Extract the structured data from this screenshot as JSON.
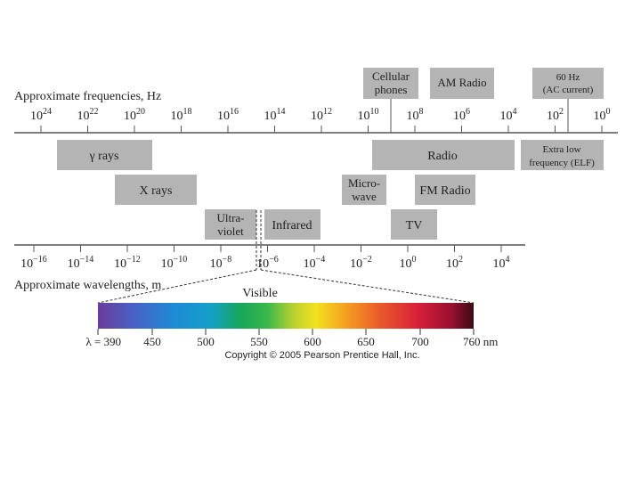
{
  "freq_axis": {
    "title": "Approximate frequencies, Hz",
    "ticks": [
      {
        "base": "10",
        "exp": "24"
      },
      {
        "base": "10",
        "exp": "22"
      },
      {
        "base": "10",
        "exp": "20"
      },
      {
        "base": "10",
        "exp": "18"
      },
      {
        "base": "10",
        "exp": "16"
      },
      {
        "base": "10",
        "exp": "14"
      },
      {
        "base": "10",
        "exp": "12"
      },
      {
        "base": "10",
        "exp": "10"
      },
      {
        "base": "10",
        "exp": "8"
      },
      {
        "base": "10",
        "exp": "6"
      },
      {
        "base": "10",
        "exp": "4"
      },
      {
        "base": "10",
        "exp": "2"
      },
      {
        "base": "10",
        "exp": "0"
      }
    ]
  },
  "wave_axis": {
    "title": "Approximate wavelengths, m",
    "ticks": [
      {
        "base": "10",
        "exp": "−16"
      },
      {
        "base": "10",
        "exp": "−14"
      },
      {
        "base": "10",
        "exp": "−12"
      },
      {
        "base": "10",
        "exp": "−10"
      },
      {
        "base": "10",
        "exp": "−8"
      },
      {
        "base": "10",
        "exp": "−6"
      },
      {
        "base": "10",
        "exp": "−4"
      },
      {
        "base": "10",
        "exp": "−2"
      },
      {
        "base": "10",
        "exp": "0"
      },
      {
        "base": "10",
        "exp": "2"
      },
      {
        "base": "10",
        "exp": "4"
      }
    ]
  },
  "top_boxes": {
    "cellular": [
      "Cellular",
      "phones"
    ],
    "am_radio": "AM Radio",
    "ac": [
      "60 Hz",
      "(AC current)"
    ]
  },
  "bands": {
    "gamma": "γ rays",
    "xrays": "X rays",
    "uv": [
      "Ultra-",
      "violet"
    ],
    "infrared": "Infrared",
    "microwave": [
      "Micro-",
      "wave"
    ],
    "radio": "Radio",
    "fm": "FM Radio",
    "tv": "TV",
    "elf": [
      "Extra low",
      "frequency (ELF)"
    ]
  },
  "visible": {
    "label": "Visible",
    "ticks": [
      "λ = 390",
      "450",
      "500",
      "550",
      "600",
      "650",
      "700",
      "760 nm"
    ]
  },
  "copyright": "Copyright © 2005 Pearson Prentice Hall, Inc.",
  "colors": {
    "box": "#b4b4b4",
    "axis": "#555555"
  }
}
